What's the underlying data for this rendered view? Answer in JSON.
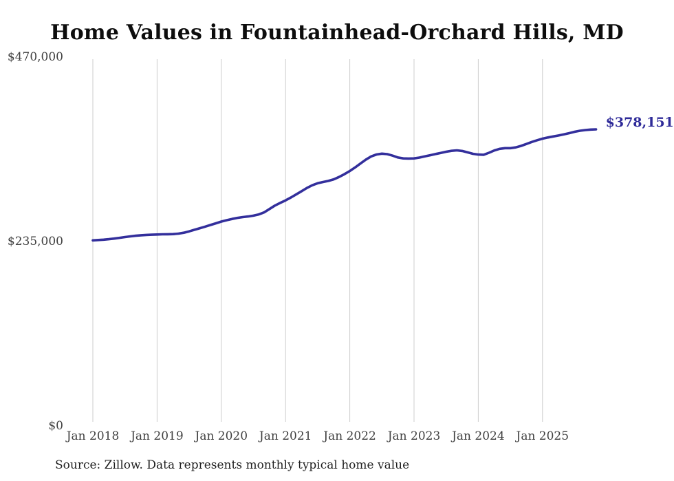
{
  "page": {
    "title": "Home Values in Fountainhead-Orchard Hills, MD",
    "source_note": "Source: Zillow. Data represents monthly typical home value"
  },
  "chart_data": {
    "type": "line",
    "title": "Home Values in Fountainhead-Orchard Hills, MD",
    "xlabel": "",
    "ylabel": "",
    "ylim": [
      0,
      470000
    ],
    "grid": "vertical-year-lines",
    "legend": "none",
    "x_tick_labels": [
      "Jan 2018",
      "Jan 2019",
      "Jan 2020",
      "Jan 2021",
      "Jan 2022",
      "Jan 2023",
      "Jan 2024",
      "Jan 2025"
    ],
    "y_ticks": [
      {
        "label": "$0",
        "value": 0
      },
      {
        "label": "$235,000",
        "value": 235000
      },
      {
        "label": "$470,000",
        "value": 470000
      }
    ],
    "end_label": "$378,151",
    "end_value": 378151,
    "line_color": "#332f9c",
    "end_label_color": "#2f2b99",
    "grid_color": "#cccccc",
    "tick_label_color": "#404040",
    "series": [
      {
        "name": "Monthly typical home value",
        "start_month": "2018-01",
        "end_month": "2025-11",
        "values": [
          236500,
          236900,
          237400,
          238000,
          238800,
          239700,
          240700,
          241600,
          242400,
          243000,
          243400,
          243700,
          244000,
          244200,
          244300,
          244500,
          245100,
          246200,
          248000,
          250000,
          252000,
          254100,
          256200,
          258300,
          260500,
          262200,
          263800,
          265200,
          266200,
          267000,
          268000,
          269600,
          272200,
          276500,
          280800,
          284300,
          287500,
          291200,
          295200,
          299300,
          303400,
          306800,
          309400,
          311000,
          312400,
          314400,
          317400,
          321000,
          325000,
          329600,
          334600,
          339600,
          343600,
          346100,
          347100,
          346500,
          344600,
          342200,
          341100,
          340900,
          341100,
          342100,
          343600,
          345100,
          346600,
          348100,
          349600,
          350700,
          351400,
          350600,
          348800,
          347000,
          346000,
          345700,
          348300,
          351300,
          353300,
          354200,
          354200,
          355100,
          357100,
          359500,
          362100,
          364300,
          366300,
          367800,
          369100,
          370300,
          371700,
          373300,
          375100,
          376400,
          377300,
          377900,
          378151
        ]
      }
    ]
  }
}
